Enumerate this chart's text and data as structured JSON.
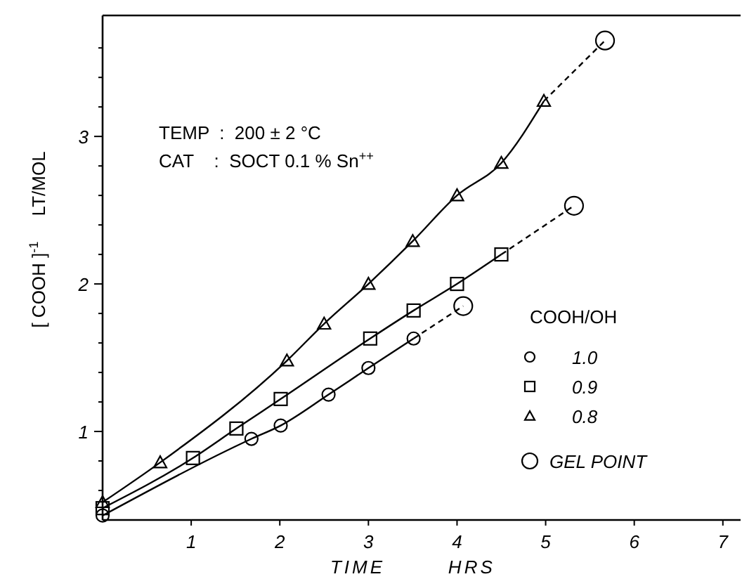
{
  "chart_data": {
    "type": "line",
    "xlabel": "TIME        HRS",
    "ylabel": "[ COOH ]$^{-1}$     LT/MOL",
    "legend_title": "COOH/OH",
    "annotations": [
      "TEMP  :  200 ± 2 °C",
      "CAT    :  SOCT 0.1 % Sn$^{++}$"
    ],
    "xlim": [
      0,
      7.2
    ],
    "xticks": [
      1,
      2,
      3,
      4,
      5,
      6,
      7
    ],
    "ylim": [
      0.4,
      3.82
    ],
    "yticks": [
      {
        "value": 0.6,
        "label": null
      },
      {
        "value": 0.8,
        "label": null
      },
      1,
      {
        "value": 1.2,
        "label": null
      },
      {
        "value": 1.4,
        "label": null
      },
      {
        "value": 1.6,
        "label": null
      },
      {
        "value": 1.8,
        "label": null
      },
      2,
      {
        "value": 2.2,
        "label": null
      },
      {
        "value": 2.4,
        "label": null
      },
      {
        "value": 2.6,
        "label": null
      },
      {
        "value": 2.8,
        "label": null
      },
      3,
      {
        "value": 3.2,
        "label": null
      },
      {
        "value": 3.4,
        "label": null
      },
      {
        "value": 3.6,
        "label": null
      }
    ],
    "legend": "bottom right",
    "series": [
      {
        "name": "1.0",
        "color": "#000000",
        "marker": "circle",
        "line_style": "solid",
        "x": [
          0,
          1.68,
          2.01,
          2.55,
          3.0,
          3.51
        ],
        "values": [
          0.43,
          0.95,
          1.04,
          1.25,
          1.43,
          1.63
        ]
      },
      {
        "name": "0.9",
        "color": "#000000",
        "marker": "square",
        "line_style": "solid",
        "x": [
          0,
          1.02,
          1.51,
          2.01,
          3.02,
          3.51,
          4.0,
          4.5
        ],
        "values": [
          0.48,
          0.82,
          1.02,
          1.22,
          1.63,
          1.82,
          2.0,
          2.2
        ]
      },
      {
        "name": "0.8",
        "color": "#000000",
        "marker": "triangle",
        "line_style": "solid",
        "x": [
          0,
          0.65,
          2.08,
          2.5,
          3.0,
          3.5,
          4.0,
          4.5,
          4.98
        ],
        "values": [
          0.52,
          0.79,
          1.48,
          1.73,
          2.0,
          2.29,
          2.6,
          2.82,
          3.24
        ]
      },
      {
        "color": "#000000",
        "marker": "none",
        "line_style": "dashed",
        "x": [
          3.51,
          4.07
        ],
        "values": [
          1.63,
          1.85
        ]
      },
      {
        "color": "#000000",
        "marker": "none",
        "line_style": "dashed",
        "x": [
          4.5,
          5.32
        ],
        "values": [
          2.2,
          2.53
        ]
      },
      {
        "color": "#000000",
        "marker": "none",
        "line_style": "dashed",
        "x": [
          4.98,
          5.67
        ],
        "values": [
          3.24,
          3.65
        ]
      },
      {
        "name": "GEL POINT",
        "type": "scatter",
        "color": "#000000",
        "marker": "circle",
        "x": [
          4.07,
          5.32,
          5.67
        ],
        "values": [
          1.85,
          2.53,
          3.65
        ]
      }
    ]
  }
}
